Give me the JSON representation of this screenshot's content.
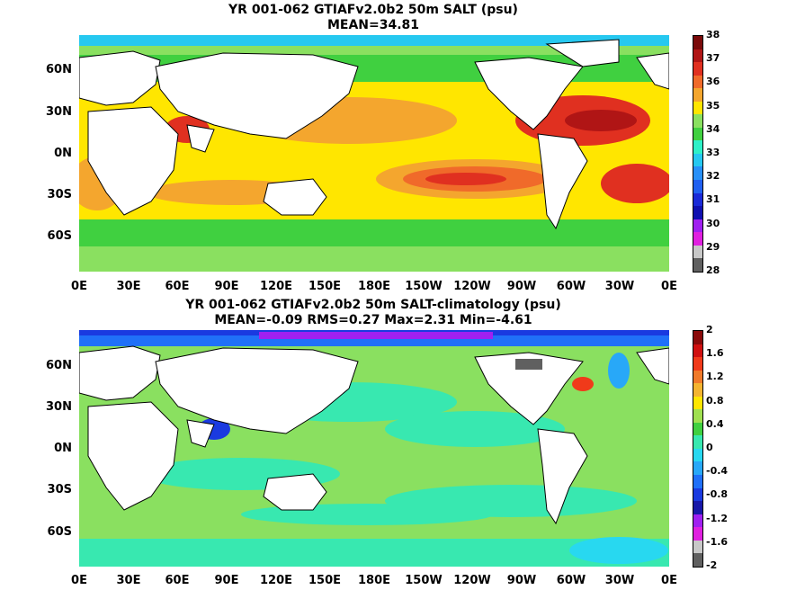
{
  "top_panel": {
    "title_line1": "YR 001-062 GTIAFv2.0b2 50m SALT (psu)",
    "title_line2": "MEAN=34.81",
    "colorbar_labels": [
      "38",
      "37",
      "36",
      "35",
      "34",
      "33",
      "32",
      "31",
      "30",
      "29",
      "28"
    ],
    "colorbar_colors": [
      "#7a0a0a",
      "#b01515",
      "#e03020",
      "#f06a2a",
      "#f4a62e",
      "#ffe600",
      "#8ae060",
      "#40d040",
      "#2ef0c8",
      "#26c8f0",
      "#2890f8",
      "#2060f0",
      "#1a2ad8",
      "#1010b0",
      "#a020f0",
      "#e020e0",
      "#c8c8c8",
      "#606060"
    ]
  },
  "bottom_panel": {
    "title_line1": "YR 001-062 GTIAFv2.0b2 50m SALT-climatology (psu)",
    "title_line2": "MEAN=-0.09   RMS=0.27   Max=2.31   Min=-4.61",
    "colorbar_labels": [
      "2",
      "1.6",
      "1.2",
      "0.8",
      "0.4",
      "0",
      "-0.4",
      "-0.8",
      "-1.2",
      "-1.6",
      "-2"
    ],
    "colorbar_colors": [
      "#8a0a0a",
      "#d01010",
      "#f03a1a",
      "#f07a2a",
      "#f4b430",
      "#ffe600",
      "#a0e050",
      "#40d040",
      "#38e8b0",
      "#28d8f0",
      "#28a8f8",
      "#2070f8",
      "#1a3ae0",
      "#1818a8",
      "#a020f0",
      "#e020e0",
      "#c8c8c8",
      "#606060"
    ]
  },
  "lat_labels": [
    "60N",
    "30N",
    "0N",
    "30S",
    "60S"
  ],
  "lon_labels": [
    "0E",
    "30E",
    "60E",
    "90E",
    "120E",
    "150E",
    "180E",
    "150W",
    "120W",
    "90W",
    "60W",
    "30W",
    "0E"
  ]
}
